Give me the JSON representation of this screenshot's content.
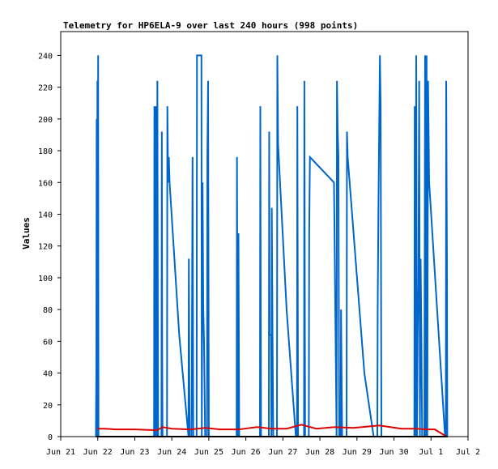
{
  "chart_data": {
    "type": "line",
    "title": "Telemetry for HP6ELA-9 over last 240 hours (998 points)",
    "ylabel": "Values",
    "xlabel": "",
    "xlim_days": [
      21,
      32
    ],
    "ylim": [
      0,
      255
    ],
    "x_ticks": [
      {
        "day": 21,
        "label": "Jun 21"
      },
      {
        "day": 22,
        "label": "Jun 22"
      },
      {
        "day": 23,
        "label": "Jun 23"
      },
      {
        "day": 24,
        "label": "Jun 24"
      },
      {
        "day": 25,
        "label": "Jun 25"
      },
      {
        "day": 26,
        "label": "Jun 26"
      },
      {
        "day": 27,
        "label": "Jun 27"
      },
      {
        "day": 28,
        "label": "Jun 28"
      },
      {
        "day": 29,
        "label": "Jun 29"
      },
      {
        "day": 30,
        "label": "Jun 30"
      },
      {
        "day": 31,
        "label": "Jul 1"
      },
      {
        "day": 32,
        "label": "Jul 2"
      }
    ],
    "y_ticks": [
      0,
      20,
      40,
      60,
      80,
      100,
      120,
      140,
      160,
      180,
      200,
      220,
      240
    ],
    "grid": false,
    "legend": "none",
    "series": [
      {
        "color": "#0066cc",
        "points": [
          [
            21.95,
            0
          ],
          [
            21.96,
            40
          ],
          [
            21.97,
            200
          ],
          [
            21.98,
            0
          ],
          [
            21.99,
            224
          ],
          [
            22.0,
            0
          ],
          [
            22.01,
            240
          ],
          [
            22.02,
            0
          ],
          [
            23.52,
            0
          ],
          [
            23.53,
            208
          ],
          [
            23.55,
            0
          ],
          [
            23.57,
            208
          ],
          [
            23.59,
            0
          ],
          [
            23.61,
            224
          ],
          [
            23.63,
            0
          ],
          [
            23.72,
            0
          ],
          [
            23.73,
            192
          ],
          [
            23.74,
            56
          ],
          [
            23.75,
            0
          ],
          [
            23.87,
            0
          ],
          [
            23.88,
            208
          ],
          [
            23.9,
            160
          ],
          [
            23.92,
            176
          ],
          [
            23.94,
            160
          ],
          [
            24.2,
            64
          ],
          [
            24.45,
            0
          ],
          [
            24.46,
            112
          ],
          [
            24.48,
            0
          ],
          [
            24.53,
            0
          ],
          [
            24.54,
            32
          ],
          [
            24.56,
            176
          ],
          [
            24.58,
            0
          ],
          [
            24.67,
            0
          ],
          [
            24.68,
            240
          ],
          [
            24.8,
            240
          ],
          [
            24.81,
            0
          ],
          [
            24.83,
            160
          ],
          [
            24.85,
            80
          ],
          [
            24.87,
            60
          ],
          [
            24.9,
            0
          ],
          [
            24.95,
            0
          ],
          [
            24.96,
            176
          ],
          [
            24.98,
            224
          ],
          [
            25.0,
            0
          ],
          [
            25.75,
            0
          ],
          [
            25.76,
            176
          ],
          [
            25.78,
            0
          ],
          [
            25.8,
            128
          ],
          [
            25.82,
            0
          ],
          [
            26.38,
            0
          ],
          [
            26.39,
            208
          ],
          [
            26.41,
            0
          ],
          [
            26.62,
            0
          ],
          [
            26.63,
            192
          ],
          [
            26.64,
            64
          ],
          [
            26.68,
            64
          ],
          [
            26.69,
            0
          ],
          [
            26.7,
            144
          ],
          [
            26.72,
            64
          ],
          [
            26.74,
            0
          ],
          [
            26.84,
            0
          ],
          [
            26.85,
            240
          ],
          [
            26.87,
            184
          ],
          [
            27.1,
            80
          ],
          [
            27.35,
            0
          ],
          [
            27.38,
            0
          ],
          [
            27.39,
            208
          ],
          [
            27.41,
            0
          ],
          [
            27.57,
            0
          ],
          [
            27.58,
            224
          ],
          [
            27.6,
            0
          ],
          [
            27.7,
            0
          ],
          [
            27.71,
            128
          ],
          [
            27.73,
            176
          ],
          [
            28.38,
            160
          ],
          [
            28.45,
            0
          ],
          [
            28.46,
            224
          ],
          [
            28.48,
            192
          ],
          [
            28.5,
            176
          ],
          [
            28.52,
            0
          ],
          [
            28.56,
            0
          ],
          [
            28.57,
            80
          ],
          [
            28.6,
            0
          ],
          [
            28.72,
            0
          ],
          [
            28.73,
            192
          ],
          [
            28.75,
            176
          ],
          [
            29.2,
            40
          ],
          [
            29.45,
            0
          ],
          [
            29.55,
            0
          ],
          [
            29.56,
            80
          ],
          [
            29.58,
            144
          ],
          [
            29.6,
            192
          ],
          [
            29.62,
            240
          ],
          [
            29.64,
            208
          ],
          [
            29.66,
            0
          ],
          [
            30.55,
            0
          ],
          [
            30.56,
            208
          ],
          [
            30.58,
            0
          ],
          [
            30.6,
            240
          ],
          [
            30.62,
            0
          ],
          [
            30.64,
            64
          ],
          [
            30.66,
            96
          ],
          [
            30.68,
            224
          ],
          [
            30.7,
            0
          ],
          [
            30.72,
            112
          ],
          [
            30.74,
            64
          ],
          [
            30.76,
            0
          ],
          [
            30.82,
            0
          ],
          [
            30.84,
            240
          ],
          [
            30.86,
            0
          ],
          [
            30.88,
            240
          ],
          [
            30.9,
            0
          ],
          [
            30.92,
            224
          ],
          [
            30.95,
            160
          ],
          [
            31.38,
            0
          ],
          [
            31.4,
            0
          ],
          [
            31.41,
            224
          ],
          [
            31.43,
            112
          ],
          [
            31.44,
            0
          ]
        ]
      },
      {
        "color": "#dd0000",
        "points": [
          [
            21.99,
            5
          ],
          [
            22.2,
            5
          ],
          [
            22.5,
            4.5
          ],
          [
            23.0,
            4.5
          ],
          [
            23.6,
            4
          ],
          [
            23.75,
            6
          ],
          [
            24.0,
            5
          ],
          [
            24.5,
            4.5
          ],
          [
            24.9,
            5.5
          ],
          [
            25.3,
            4.5
          ],
          [
            25.8,
            4.5
          ],
          [
            26.3,
            6
          ],
          [
            26.7,
            5
          ],
          [
            27.1,
            5
          ],
          [
            27.5,
            7.5
          ],
          [
            27.9,
            5
          ],
          [
            28.4,
            6
          ],
          [
            28.9,
            5.5
          ],
          [
            29.6,
            7
          ],
          [
            30.2,
            5
          ],
          [
            30.6,
            5
          ],
          [
            30.9,
            4.5
          ],
          [
            31.1,
            4.5
          ],
          [
            31.42,
            0
          ]
        ]
      },
      {
        "color": "#000000",
        "points": [
          [
            21.95,
            0
          ],
          [
            31.45,
            0
          ]
        ]
      }
    ]
  }
}
